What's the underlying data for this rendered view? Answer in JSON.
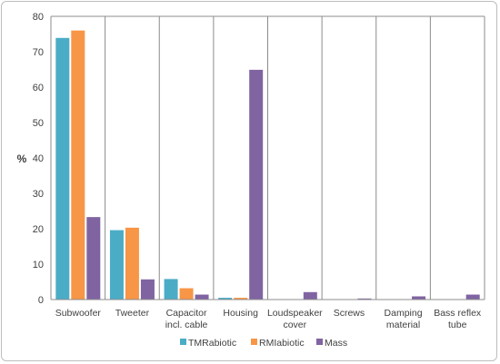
{
  "chart_data": {
    "type": "bar",
    "ylabel": "%",
    "ylim": [
      0,
      80
    ],
    "yticks": [
      0,
      10,
      20,
      30,
      40,
      50,
      60,
      70,
      80
    ],
    "categories": [
      [
        "Subwoofer"
      ],
      [
        "Tweeter"
      ],
      [
        "Capacitor",
        "incl. cable"
      ],
      [
        "Housing"
      ],
      [
        "Loudspeaker",
        "cover"
      ],
      [
        "Screws"
      ],
      [
        "Damping",
        "material"
      ],
      [
        "Bass reflex",
        "tube"
      ]
    ],
    "series": [
      {
        "name": "TMRabiotic",
        "color": "#4bacc6",
        "values": [
          73.9,
          19.6,
          5.8,
          0.5,
          0.0,
          0.0,
          0.0,
          0.0
        ]
      },
      {
        "name": "RMIabiotic",
        "color": "#f79646",
        "values": [
          76.0,
          20.3,
          3.2,
          0.5,
          0.0,
          0.0,
          0.0,
          0.0
        ]
      },
      {
        "name": "Mass",
        "color": "#8064a2",
        "values": [
          23.3,
          5.7,
          1.4,
          64.9,
          2.1,
          0.3,
          0.9,
          1.4
        ]
      }
    ],
    "grid": {
      "vertical_separators": true,
      "horizontal": false
    },
    "legend": "bottom"
  }
}
